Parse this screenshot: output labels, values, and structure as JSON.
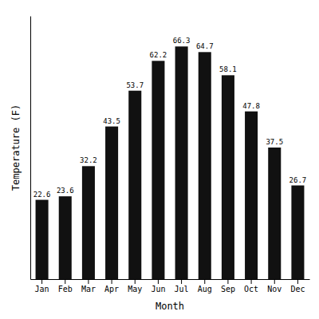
{
  "chart_data": {
    "type": "bar",
    "categories": [
      "Jan",
      "Feb",
      "Mar",
      "Apr",
      "May",
      "Jun",
      "Jul",
      "Aug",
      "Sep",
      "Oct",
      "Nov",
      "Dec"
    ],
    "values": [
      22.6,
      23.6,
      32.2,
      43.5,
      53.7,
      62.2,
      66.3,
      64.7,
      58.1,
      47.8,
      37.5,
      26.7
    ],
    "color": "#111111",
    "xlabel": "Month",
    "ylabel": "Temperature (F)",
    "ylim": [
      0,
      75
    ],
    "data_labels": true,
    "tick_labels": "x",
    "grid": false
  }
}
